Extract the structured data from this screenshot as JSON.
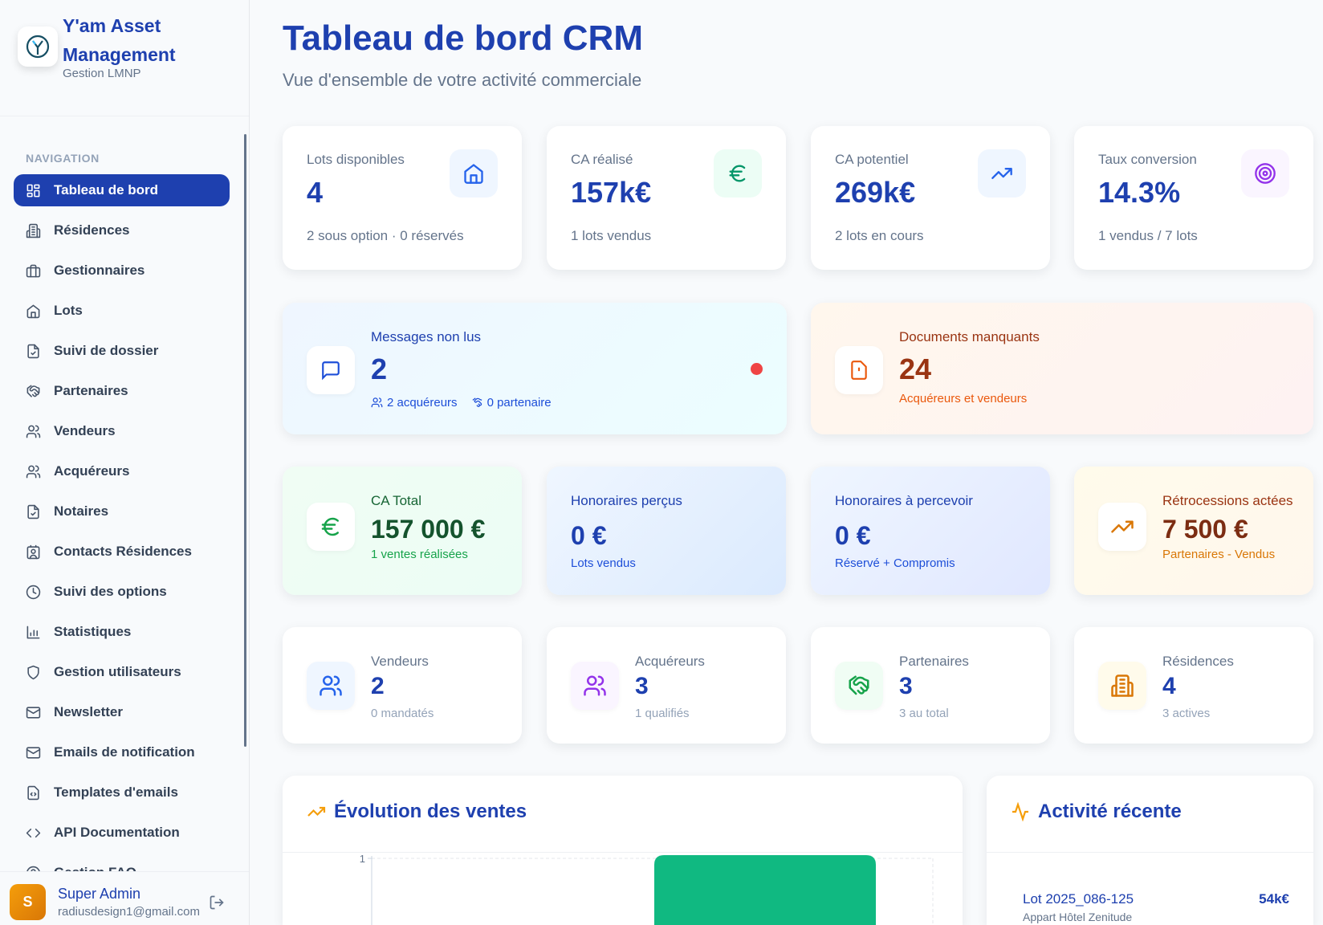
{
  "sidebar": {
    "brand": "Y'am Asset Management",
    "subtitle": "Gestion LMNP",
    "nav_label": "NAVIGATION",
    "items": [
      {
        "label": "Tableau de bord",
        "icon": "dashboard-icon",
        "active": true
      },
      {
        "label": "Résidences",
        "icon": "building-icon"
      },
      {
        "label": "Gestionnaires",
        "icon": "briefcase-icon"
      },
      {
        "label": "Lots",
        "icon": "home-icon"
      },
      {
        "label": "Suivi de dossier",
        "icon": "file-check-icon"
      },
      {
        "label": "Partenaires",
        "icon": "handshake-icon"
      },
      {
        "label": "Vendeurs",
        "icon": "users-icon"
      },
      {
        "label": "Acquéreurs",
        "icon": "users-icon"
      },
      {
        "label": "Notaires",
        "icon": "file-check-icon"
      },
      {
        "label": "Contacts Résidences",
        "icon": "contact-icon"
      },
      {
        "label": "Suivi des options",
        "icon": "clock-icon"
      },
      {
        "label": "Statistiques",
        "icon": "bar-chart-icon"
      },
      {
        "label": "Gestion utilisateurs",
        "icon": "shield-icon"
      },
      {
        "label": "Newsletter",
        "icon": "mail-icon"
      },
      {
        "label": "Emails de notification",
        "icon": "mail-icon"
      },
      {
        "label": "Templates d'emails",
        "icon": "file-code-icon"
      },
      {
        "label": "API Documentation",
        "icon": "code-icon"
      },
      {
        "label": "Gestion FAQ",
        "icon": "help-icon"
      }
    ],
    "user": {
      "initial": "S",
      "name": "Super Admin",
      "email": "radiusdesign1@gmail.com"
    }
  },
  "header": {
    "title": "Tableau de bord CRM",
    "subtitle": "Vue d'ensemble de votre activité commerciale"
  },
  "kpis": [
    {
      "label": "Lots disponibles",
      "value": "4",
      "sub": "2 sous option · 0 réservés",
      "icon": "home-icon",
      "color": "#2563eb",
      "bg": "#eff6ff"
    },
    {
      "label": "CA réalisé",
      "value": "157k€",
      "sub": "1 lots vendus",
      "icon": "euro-icon",
      "color": "#059669",
      "bg": "#ecfdf5"
    },
    {
      "label": "CA potentiel",
      "value": "269k€",
      "sub": "2 lots en cours",
      "icon": "trending-up-icon",
      "color": "#2563eb",
      "bg": "#eff6ff"
    },
    {
      "label": "Taux conversion",
      "value": "14.3%",
      "sub": "1 vendus / 7 lots",
      "icon": "target-icon",
      "color": "#9333ea",
      "bg": "#faf5ff"
    }
  ],
  "messages": {
    "label": "Messages non lus",
    "value": "2",
    "acquereurs": "2 acquéreurs",
    "partenaires": "0 partenaire",
    "dot_color": "#ef4444"
  },
  "documents": {
    "label": "Documents manquants",
    "value": "24",
    "sub": "Acquéreurs et vendeurs"
  },
  "finance": [
    {
      "label": "CA Total",
      "value": "157 000 €",
      "sub": "1 ventes réalisées"
    },
    {
      "label": "Honoraires perçus",
      "value": "0 €",
      "sub": "Lots vendus"
    },
    {
      "label": "Honoraires à percevoir",
      "value": "0 €",
      "sub": "Réservé + Compromis"
    },
    {
      "label": "Rétrocessions actées",
      "value": "7 500 €",
      "sub": "Partenaires - Vendus"
    }
  ],
  "counts": [
    {
      "label": "Vendeurs",
      "value": "2",
      "sub": "0 mandatés",
      "icon": "users-icon",
      "color": "#2563eb",
      "bg": "#eff6ff"
    },
    {
      "label": "Acquéreurs",
      "value": "3",
      "sub": "1 qualifiés",
      "icon": "users-icon",
      "color": "#9333ea",
      "bg": "#faf5ff"
    },
    {
      "label": "Partenaires",
      "value": "3",
      "sub": "3 au total",
      "icon": "handshake-icon",
      "color": "#16a34a",
      "bg": "#f0fdf4"
    },
    {
      "label": "Résidences",
      "value": "4",
      "sub": "3 actives",
      "icon": "building-icon",
      "color": "#d97706",
      "bg": "#fffbeb"
    }
  ],
  "sales_panel": {
    "title": "Évolution des ventes"
  },
  "activity_panel": {
    "title": "Activité récente",
    "items": [
      {
        "title": "Lot 2025_086-125",
        "amount": "54k€",
        "sub": "Appart Hôtel Zenitude"
      }
    ]
  },
  "chart_data": {
    "type": "bar",
    "yticks": [
      "1"
    ],
    "ylim": [
      0,
      1
    ],
    "values": [
      1
    ],
    "bar_color": "#10b981"
  }
}
